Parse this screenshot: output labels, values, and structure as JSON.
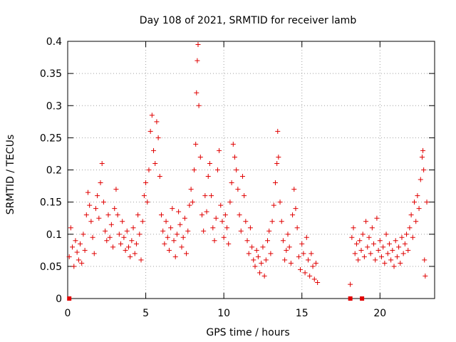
{
  "chart_data": {
    "type": "scatter",
    "title": "Day 108 of 2021, SRMTID for receiver lamb",
    "xlabel": "GPS time / hours",
    "ylabel": "SRMTID / TECUs",
    "xlim": [
      0,
      23.5
    ],
    "ylim": [
      0,
      0.4
    ],
    "x_ticks": [
      0,
      5,
      10,
      15,
      20
    ],
    "y_ticks": [
      0,
      0.05,
      0.1,
      0.15,
      0.2,
      0.25,
      0.3,
      0.35,
      0.4
    ],
    "x_tick_labels": [
      "0",
      "5",
      "10",
      "15",
      "20"
    ],
    "y_tick_labels": [
      "0",
      "0.05",
      "0.1",
      "0.15",
      "0.2",
      "0.25",
      "0.3",
      "0.35",
      "0.4"
    ],
    "grid": true,
    "marker": "+",
    "color": "#e00000",
    "series": [
      {
        "name": "SRMTID",
        "points": [
          [
            0.1,
            0.065
          ],
          [
            0.2,
            0.11
          ],
          [
            0.3,
            0.08
          ],
          [
            0.4,
            0.05
          ],
          [
            0.5,
            0.09
          ],
          [
            0.6,
            0.072
          ],
          [
            0.7,
            0.06
          ],
          [
            0.8,
            0.085
          ],
          [
            0.9,
            0.055
          ],
          [
            1.0,
            0.1
          ],
          [
            1.1,
            0.075
          ],
          [
            1.2,
            0.13
          ],
          [
            1.3,
            0.165
          ],
          [
            1.4,
            0.145
          ],
          [
            1.5,
            0.12
          ],
          [
            1.6,
            0.095
          ],
          [
            1.7,
            0.07
          ],
          [
            1.8,
            0.14
          ],
          [
            1.9,
            0.16
          ],
          [
            2.0,
            0.125
          ],
          [
            2.1,
            0.18
          ],
          [
            2.2,
            0.21
          ],
          [
            2.3,
            0.15
          ],
          [
            2.4,
            0.105
          ],
          [
            2.5,
            0.09
          ],
          [
            2.6,
            0.13
          ],
          [
            2.7,
            0.095
          ],
          [
            2.8,
            0.115
          ],
          [
            2.9,
            0.08
          ],
          [
            3.0,
            0.14
          ],
          [
            3.1,
            0.17
          ],
          [
            3.2,
            0.13
          ],
          [
            3.3,
            0.1
          ],
          [
            3.4,
            0.085
          ],
          [
            3.5,
            0.12
          ],
          [
            3.6,
            0.095
          ],
          [
            3.7,
            0.075
          ],
          [
            3.8,
            0.105
          ],
          [
            3.9,
            0.08
          ],
          [
            4.0,
            0.065
          ],
          [
            4.1,
            0.09
          ],
          [
            4.2,
            0.11
          ],
          [
            4.3,
            0.07
          ],
          [
            4.4,
            0.085
          ],
          [
            4.5,
            0.13
          ],
          [
            4.6,
            0.1
          ],
          [
            4.7,
            0.06
          ],
          [
            4.8,
            0.12
          ],
          [
            4.9,
            0.16
          ],
          [
            5.0,
            0.18
          ],
          [
            5.1,
            0.15
          ],
          [
            5.2,
            0.2
          ],
          [
            5.3,
            0.26
          ],
          [
            5.4,
            0.285
          ],
          [
            5.5,
            0.23
          ],
          [
            5.6,
            0.21
          ],
          [
            5.7,
            0.275
          ],
          [
            5.8,
            0.25
          ],
          [
            5.9,
            0.19
          ],
          [
            6.0,
            0.13
          ],
          [
            6.1,
            0.105
          ],
          [
            6.2,
            0.085
          ],
          [
            6.3,
            0.12
          ],
          [
            6.4,
            0.095
          ],
          [
            6.5,
            0.075
          ],
          [
            6.6,
            0.11
          ],
          [
            6.7,
            0.14
          ],
          [
            6.8,
            0.09
          ],
          [
            6.9,
            0.065
          ],
          [
            7.0,
            0.1
          ],
          [
            7.1,
            0.135
          ],
          [
            7.2,
            0.115
          ],
          [
            7.3,
            0.08
          ],
          [
            7.4,
            0.095
          ],
          [
            7.5,
            0.125
          ],
          [
            7.6,
            0.07
          ],
          [
            7.7,
            0.105
          ],
          [
            7.8,
            0.145
          ],
          [
            7.9,
            0.17
          ],
          [
            8.0,
            0.15
          ],
          [
            8.1,
            0.2
          ],
          [
            8.2,
            0.24
          ],
          [
            8.25,
            0.32
          ],
          [
            8.3,
            0.37
          ],
          [
            8.35,
            0.395
          ],
          [
            8.4,
            0.3
          ],
          [
            8.5,
            0.22
          ],
          [
            8.6,
            0.13
          ],
          [
            8.7,
            0.105
          ],
          [
            8.8,
            0.16
          ],
          [
            8.9,
            0.135
          ],
          [
            9.0,
            0.19
          ],
          [
            9.1,
            0.21
          ],
          [
            9.2,
            0.16
          ],
          [
            9.3,
            0.11
          ],
          [
            9.4,
            0.09
          ],
          [
            9.5,
            0.125
          ],
          [
            9.6,
            0.2
          ],
          [
            9.7,
            0.23
          ],
          [
            9.8,
            0.145
          ],
          [
            9.9,
            0.12
          ],
          [
            10.0,
            0.095
          ],
          [
            10.1,
            0.13
          ],
          [
            10.2,
            0.11
          ],
          [
            10.3,
            0.085
          ],
          [
            10.4,
            0.15
          ],
          [
            10.5,
            0.18
          ],
          [
            10.6,
            0.24
          ],
          [
            10.7,
            0.22
          ],
          [
            10.8,
            0.2
          ],
          [
            10.9,
            0.17
          ],
          [
            11.0,
            0.13
          ],
          [
            11.1,
            0.105
          ],
          [
            11.2,
            0.19
          ],
          [
            11.3,
            0.16
          ],
          [
            11.4,
            0.12
          ],
          [
            11.5,
            0.09
          ],
          [
            11.6,
            0.07
          ],
          [
            11.7,
            0.11
          ],
          [
            11.8,
            0.08
          ],
          [
            11.9,
            0.06
          ],
          [
            12.0,
            0.05
          ],
          [
            12.1,
            0.075
          ],
          [
            12.2,
            0.065
          ],
          [
            12.3,
            0.04
          ],
          [
            12.4,
            0.055
          ],
          [
            12.5,
            0.08
          ],
          [
            12.6,
            0.035
          ],
          [
            12.7,
            0.06
          ],
          [
            12.8,
            0.09
          ],
          [
            12.9,
            0.105
          ],
          [
            13.0,
            0.07
          ],
          [
            13.1,
            0.12
          ],
          [
            13.2,
            0.145
          ],
          [
            13.3,
            0.18
          ],
          [
            13.4,
            0.21
          ],
          [
            13.45,
            0.26
          ],
          [
            13.5,
            0.22
          ],
          [
            13.6,
            0.15
          ],
          [
            13.7,
            0.12
          ],
          [
            13.8,
            0.09
          ],
          [
            13.9,
            0.06
          ],
          [
            14.0,
            0.075
          ],
          [
            14.1,
            0.1
          ],
          [
            14.2,
            0.08
          ],
          [
            14.3,
            0.055
          ],
          [
            14.4,
            0.13
          ],
          [
            14.5,
            0.17
          ],
          [
            14.6,
            0.14
          ],
          [
            14.7,
            0.11
          ],
          [
            14.8,
            0.065
          ],
          [
            14.9,
            0.045
          ],
          [
            15.0,
            0.085
          ],
          [
            15.1,
            0.07
          ],
          [
            15.2,
            0.04
          ],
          [
            15.3,
            0.095
          ],
          [
            15.4,
            0.06
          ],
          [
            15.5,
            0.035
          ],
          [
            15.6,
            0.07
          ],
          [
            15.7,
            0.05
          ],
          [
            15.8,
            0.03
          ],
          [
            15.9,
            0.055
          ],
          [
            16.0,
            0.025
          ],
          [
            18.1,
            0.022
          ],
          [
            18.2,
            0.095
          ],
          [
            18.3,
            0.11
          ],
          [
            18.4,
            0.07
          ],
          [
            18.5,
            0.085
          ],
          [
            18.6,
            0.06
          ],
          [
            18.7,
            0.09
          ],
          [
            18.8,
            0.075
          ],
          [
            18.9,
            0.1
          ],
          [
            19.0,
            0.065
          ],
          [
            19.1,
            0.12
          ],
          [
            19.2,
            0.08
          ],
          [
            19.3,
            0.095
          ],
          [
            19.4,
            0.07
          ],
          [
            19.5,
            0.11
          ],
          [
            19.6,
            0.085
          ],
          [
            19.7,
            0.06
          ],
          [
            19.8,
            0.125
          ],
          [
            19.9,
            0.075
          ],
          [
            20.0,
            0.09
          ],
          [
            20.1,
            0.065
          ],
          [
            20.2,
            0.08
          ],
          [
            20.3,
            0.055
          ],
          [
            20.4,
            0.1
          ],
          [
            20.5,
            0.07
          ],
          [
            20.6,
            0.085
          ],
          [
            20.7,
            0.06
          ],
          [
            20.8,
            0.075
          ],
          [
            20.9,
            0.05
          ],
          [
            21.0,
            0.09
          ],
          [
            21.1,
            0.065
          ],
          [
            21.2,
            0.08
          ],
          [
            21.3,
            0.055
          ],
          [
            21.4,
            0.095
          ],
          [
            21.5,
            0.07
          ],
          [
            21.6,
            0.085
          ],
          [
            21.7,
            0.1
          ],
          [
            21.8,
            0.075
          ],
          [
            21.9,
            0.11
          ],
          [
            22.0,
            0.13
          ],
          [
            22.1,
            0.095
          ],
          [
            22.2,
            0.15
          ],
          [
            22.3,
            0.12
          ],
          [
            22.4,
            0.16
          ],
          [
            22.5,
            0.14
          ],
          [
            22.6,
            0.185
          ],
          [
            22.7,
            0.22
          ],
          [
            22.75,
            0.23
          ],
          [
            22.8,
            0.2
          ],
          [
            22.85,
            0.06
          ],
          [
            22.9,
            0.035
          ],
          [
            23.0,
            0.15
          ]
        ]
      }
    ],
    "zero_markers_x": [
      0.1,
      18.1,
      18.85
    ]
  }
}
